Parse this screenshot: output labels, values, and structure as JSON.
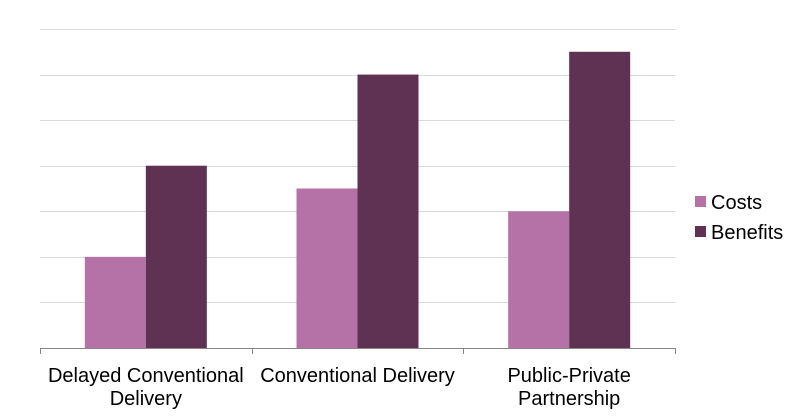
{
  "chart_data": {
    "type": "bar",
    "categories": [
      [
        "Delayed Conventional",
        "Delivery"
      ],
      [
        "Conventional Delivery"
      ],
      [
        "Public-Private",
        "Partnership"
      ]
    ],
    "series": [
      {
        "name": "Costs",
        "values": [
          2,
          3.5,
          3
        ],
        "color": "#b472a6"
      },
      {
        "name": "Benefits",
        "values": [
          4,
          6,
          6.5
        ],
        "color": "#5f3253"
      }
    ],
    "ylim": [
      0,
      7
    ],
    "y_tick_step": 1,
    "grid": true,
    "y_tick_labels_shown": false,
    "legend_position": "right"
  }
}
